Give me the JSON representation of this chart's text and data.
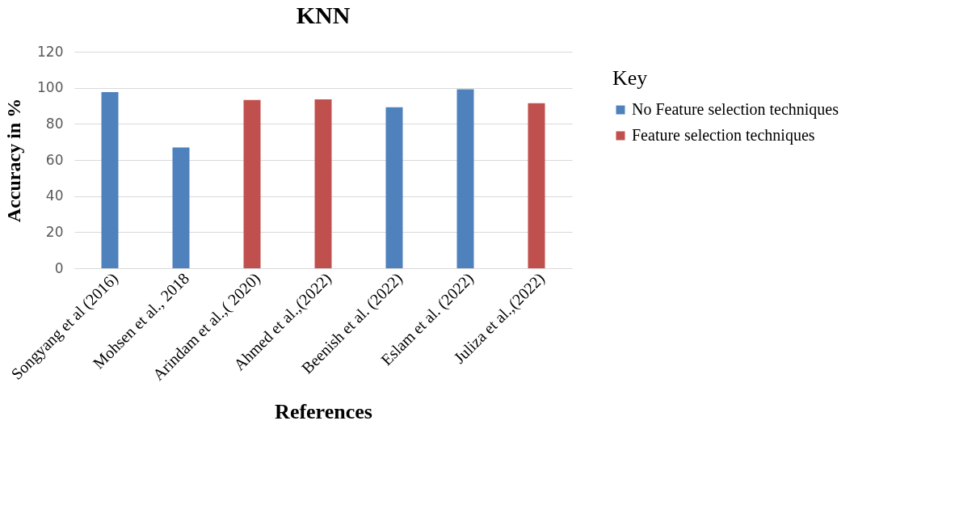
{
  "chart_data": {
    "type": "bar",
    "title": "KNN",
    "xlabel": "References",
    "ylabel": "Accuracy in %",
    "legend_title": "Key",
    "categories": [
      "Songyang et al  (2016)",
      "Mohsen et al., 2018",
      "Arindam et al.,( 2020)",
      "Ahmed et al.,(2022)",
      "Beenish et al. (2022)",
      "Eslam et al. (2022)",
      "Juliza et al.,(2022)"
    ],
    "series": [
      {
        "name": "No Feature selection techniques",
        "color": "#4f81bd",
        "values": [
          97.6,
          66.9,
          null,
          null,
          89.2,
          99.2,
          null
        ]
      },
      {
        "name": "Feature selection techniques",
        "color": "#c0504d",
        "values": [
          null,
          null,
          93.2,
          93.6,
          null,
          null,
          91.4
        ]
      }
    ],
    "ylim": [
      0,
      120
    ],
    "yticks": [
      0,
      20,
      40,
      60,
      80,
      100,
      120
    ],
    "grid": "y",
    "legend": "right"
  }
}
